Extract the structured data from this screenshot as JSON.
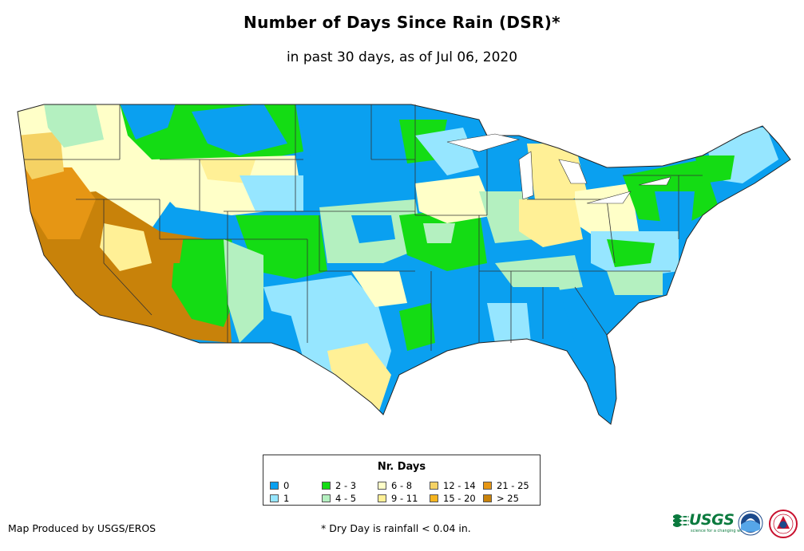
{
  "header": {
    "title": "Number of Days Since Rain (DSR)*",
    "subtitle": "in past 30 days, as of Jul 06, 2020"
  },
  "legend": {
    "title": "Nr. Days",
    "items": [
      {
        "label": "0",
        "color": "#0aa0f0"
      },
      {
        "label": "1",
        "color": "#96e6ff"
      },
      {
        "label": "2 - 3",
        "color": "#14dc14"
      },
      {
        "label": "4 - 5",
        "color": "#b4f0c0"
      },
      {
        "label": "6 - 8",
        "color": "#ffffc8"
      },
      {
        "label": "9 - 11",
        "color": "#fff096"
      },
      {
        "label": "12 - 14",
        "color": "#f5d264"
      },
      {
        "label": "15 - 20",
        "color": "#f5b41e"
      },
      {
        "label": "21 - 25",
        "color": "#e69614"
      },
      {
        "label": "> 25",
        "color": "#c8820a"
      }
    ]
  },
  "footer": {
    "credit": "Map Produced by USGS/EROS",
    "note": "* Dry Day is rainfall < 0.04 in.",
    "usgs_logo": "USGS",
    "usgs_tagline": "science for a changing world"
  },
  "logos": [
    "usgs-logo",
    "noaa-logo",
    "nws-logo"
  ]
}
